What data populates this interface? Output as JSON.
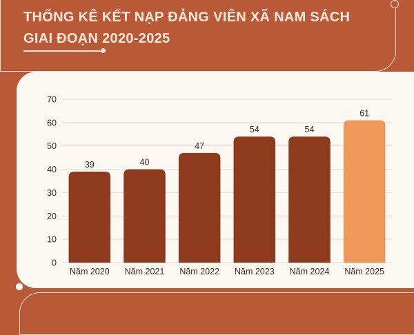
{
  "header": {
    "title_line1": "THỐNG KÊ KẾT NẠP ĐẢNG VIÊN XÃ NAM SÁCH",
    "title_line2": "GIAI ĐOẠN 2020-2025"
  },
  "colors": {
    "background": "#b85a38",
    "bar": "#8e3a1c",
    "bar_highlight": "#f0975a",
    "card": "#fbf7f3",
    "title": "#fbe7da"
  },
  "chart_data": {
    "type": "bar",
    "title": "THỐNG KÊ KẾT NẠP ĐẢNG VIÊN XÃ NAM SÁCH GIAI ĐOẠN 2020-2025",
    "xlabel": "",
    "ylabel": "",
    "categories": [
      "Năm 2020",
      "Năm 2021",
      "Năm 2022",
      "Năm 2023",
      "Năm 2024",
      "Năm 2025"
    ],
    "values": [
      39,
      40,
      47,
      54,
      54,
      61
    ],
    "data_labels": [
      "39",
      "40",
      "47",
      "54",
      "54",
      "61"
    ],
    "highlight_index": 5,
    "ylim": [
      0,
      70
    ],
    "yticks": [
      0,
      10,
      20,
      30,
      40,
      50,
      60,
      70
    ],
    "grid": true,
    "legend": "none"
  }
}
